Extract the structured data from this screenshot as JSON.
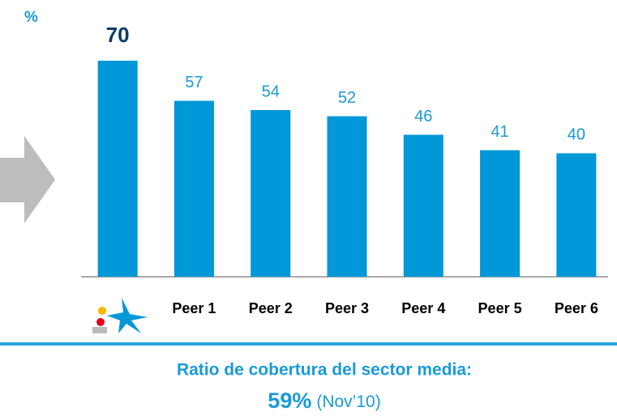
{
  "chart_data": {
    "type": "bar",
    "y_label": "%",
    "categories": [
      null,
      "Peer 1",
      "Peer 2",
      "Peer 3",
      "Peer 4",
      "Peer 5",
      "Peer 6"
    ],
    "values": [
      70,
      57,
      54,
      52,
      46,
      41,
      40
    ],
    "color": "#0098d8",
    "ylim": [
      0,
      70
    ],
    "annotations": {
      "caption": "Ratio de cobertura del sector media:",
      "highlight": "59%",
      "period": "(Nov’10)"
    }
  }
}
